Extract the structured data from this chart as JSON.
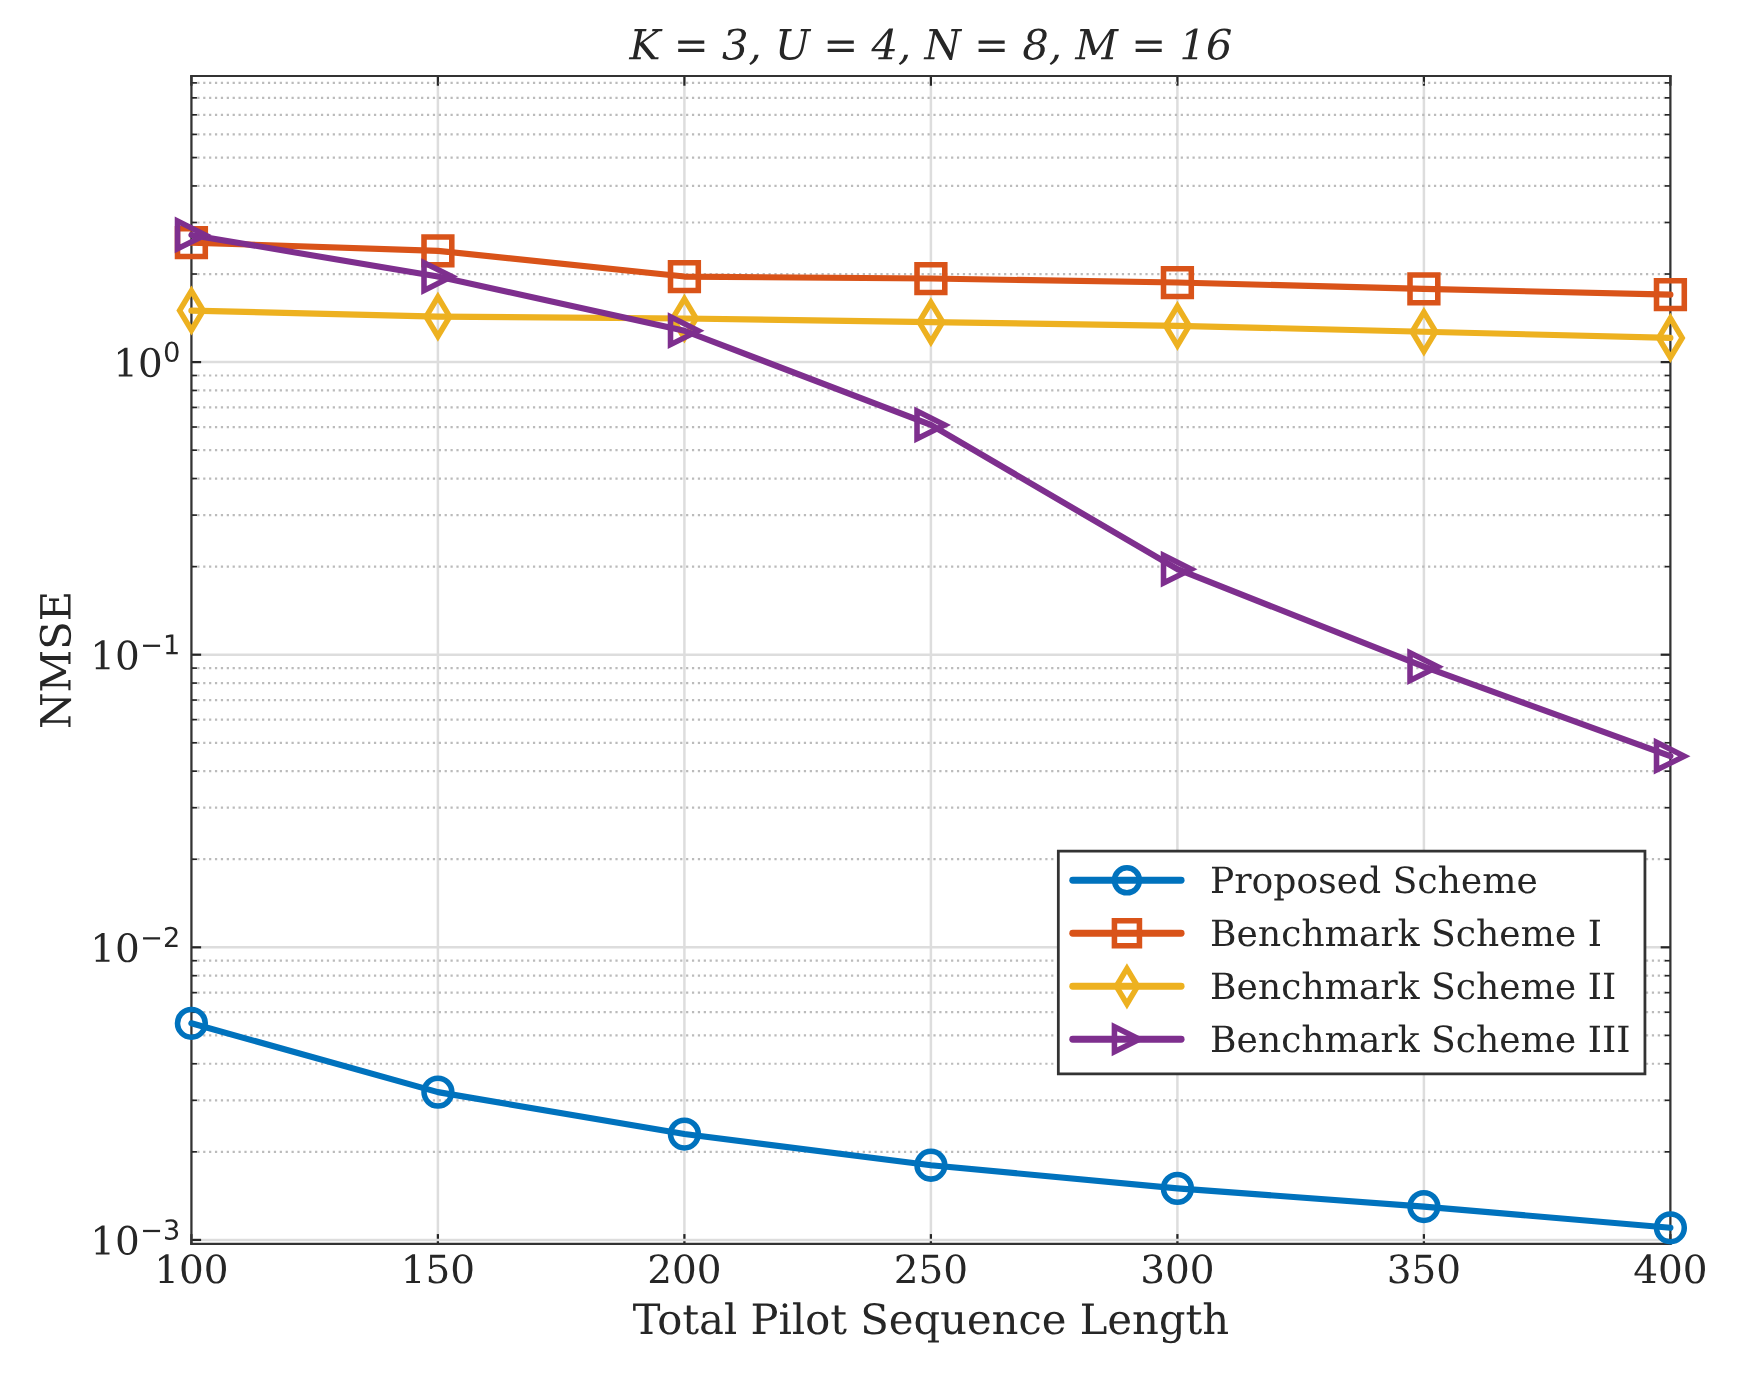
{
  "chart_data": {
    "type": "line",
    "title": "K = 3, U = 4, N = 8, M = 16",
    "xlabel": "Total Pilot Sequence Length",
    "ylabel": "NMSE",
    "x": [
      100,
      150,
      200,
      250,
      300,
      350,
      400
    ],
    "series": [
      {
        "name": "Proposed Scheme",
        "color": "#0072bd",
        "marker": "circle",
        "values": [
          0.0055,
          0.0032,
          0.0023,
          0.0018,
          0.0015,
          0.0013,
          0.0011
        ]
      },
      {
        "name": "Benchmark Scheme I",
        "color": "#d95319",
        "marker": "square",
        "values": [
          2.56,
          2.4,
          1.96,
          1.93,
          1.87,
          1.78,
          1.7
        ]
      },
      {
        "name": "Benchmark Scheme II",
        "color": "#edb120",
        "marker": "diamond",
        "values": [
          1.5,
          1.43,
          1.41,
          1.37,
          1.33,
          1.27,
          1.21
        ]
      },
      {
        "name": "Benchmark Scheme III",
        "color": "#7e2f8e",
        "marker": "triangle",
        "values": [
          2.72,
          1.96,
          1.28,
          0.61,
          0.196,
          0.091,
          0.045
        ]
      }
    ],
    "log": "y",
    "xlim": [
      100,
      400
    ],
    "xticks": [
      100,
      150,
      200,
      250,
      300,
      350,
      400
    ],
    "ylim": [
      0.00097,
      9.5
    ],
    "yticks": [
      {
        "value": 0.001,
        "label": "10$^{−3}$"
      },
      {
        "value": 0.01,
        "label": "10$^{−2}$"
      },
      {
        "value": 0.1,
        "label": "10$^{−1}$"
      },
      {
        "value": 1,
        "label": "10$^{0}$"
      }
    ],
    "grid": true,
    "legend": "bottom right",
    "line_style": "solid"
  }
}
